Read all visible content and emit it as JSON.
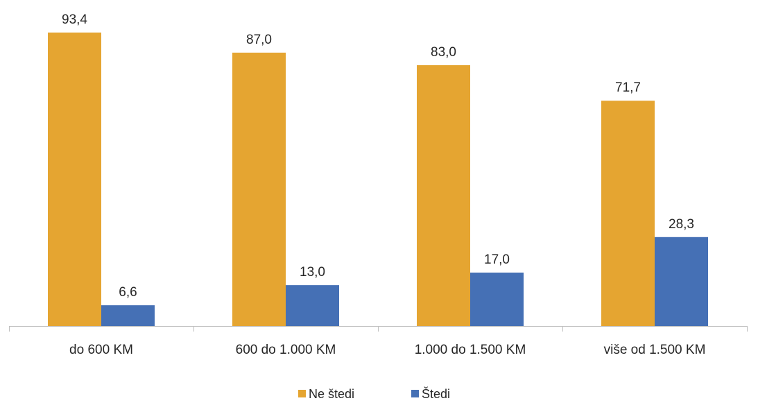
{
  "chart_data": {
    "type": "bar",
    "categories": [
      "do 600 KM",
      "600 do 1.000 KM",
      "1.000 do 1.500 KM",
      "više od 1.500 KM"
    ],
    "series": [
      {
        "name": "Ne štedi",
        "values": [
          93.4,
          87.0,
          83.0,
          71.7
        ],
        "labels": [
          "93,4",
          "87,0",
          "83,0",
          "71,7"
        ],
        "color": "#E5A531"
      },
      {
        "name": "Štedi",
        "values": [
          6.6,
          13.0,
          17.0,
          28.3
        ],
        "labels": [
          "6,6",
          "13,0",
          "17,0",
          "28,3"
        ],
        "color": "#4570B5"
      }
    ],
    "title": "",
    "xlabel": "",
    "ylabel": "",
    "ylim": [
      0,
      100
    ],
    "grid": false,
    "legend_position": "bottom"
  }
}
